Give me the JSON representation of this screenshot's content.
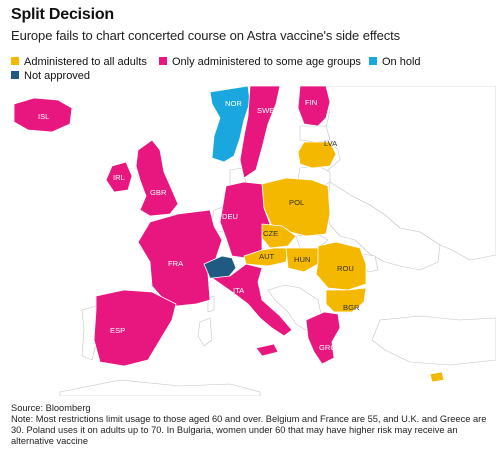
{
  "title": "Split Decision",
  "subtitle": "Europe fails to chart concerted course on Astra vaccine's side effects",
  "legend": [
    {
      "label": "Administered to all adults",
      "color": "#f5b800"
    },
    {
      "label": "Only administered to some age groups",
      "color": "#e8177f"
    },
    {
      "label": "On hold",
      "color": "#1aa7e0"
    },
    {
      "label": "Not approved",
      "color": "#1f5a82"
    }
  ],
  "colors": {
    "not_affected": "#ffffff",
    "border": "#bdbdbd"
  },
  "countries": [
    {
      "code": "ISL",
      "status": "Only administered to some age groups"
    },
    {
      "code": "NOR",
      "status": "On hold"
    },
    {
      "code": "SWE",
      "status": "Only administered to some age groups"
    },
    {
      "code": "FIN",
      "status": "Only administered to some age groups"
    },
    {
      "code": "LVA",
      "status": "Administered to all adults"
    },
    {
      "code": "IRL",
      "status": "Only administered to some age groups"
    },
    {
      "code": "GBR",
      "status": "Only administered to some age groups"
    },
    {
      "code": "POL",
      "status": "Administered to all adults"
    },
    {
      "code": "DEU",
      "status": "Only administered to some age groups"
    },
    {
      "code": "CZE",
      "status": "Administered to all adults"
    },
    {
      "code": "AUT",
      "status": "Administered to all adults"
    },
    {
      "code": "HUN",
      "status": "Administered to all adults"
    },
    {
      "code": "FRA",
      "status": "Only administered to some age groups"
    },
    {
      "code": "ROU",
      "status": "Administered to all adults"
    },
    {
      "code": "ITA",
      "status": "Only administered to some age groups"
    },
    {
      "code": "BGR",
      "status": "Administered to all adults"
    },
    {
      "code": "ESP",
      "status": "Only administered to some age groups"
    },
    {
      "code": "GRC",
      "status": "Only administered to some age groups"
    }
  ],
  "footer": {
    "source": "Source: Bloomberg",
    "note": "Note: Most restrictions limit usage to those aged 60 and over. Belgium and France are 55, and U.K. and Greece are 30. Poland uses it on adults up to 70. In Bulgaria, women under 60 that may have higher risk may receive an alternative vaccine"
  }
}
